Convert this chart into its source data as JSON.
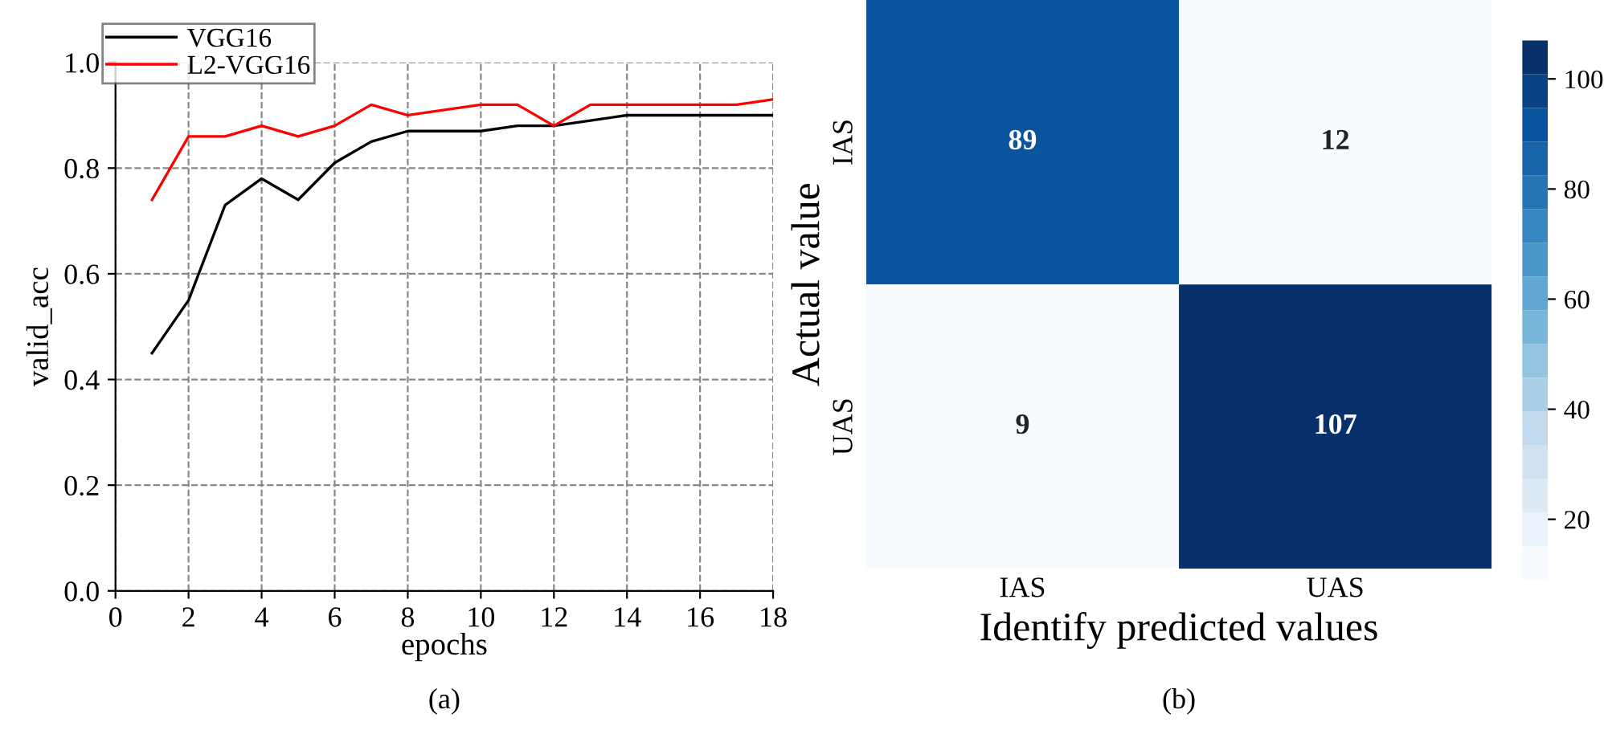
{
  "chart_data": [
    {
      "type": "line",
      "xlabel": "epochs",
      "ylabel": "valid_acc",
      "annotations": [
        "(a)"
      ],
      "x": [
        1,
        2,
        3,
        4,
        5,
        6,
        7,
        8,
        9,
        10,
        11,
        12,
        13,
        14,
        15,
        16,
        17,
        18
      ],
      "series": [
        {
          "name": "VGG16",
          "color": "#000000",
          "values": [
            0.45,
            0.55,
            0.73,
            0.78,
            0.74,
            0.81,
            0.85,
            0.87,
            0.87,
            0.87,
            0.88,
            0.88,
            0.89,
            0.9,
            0.9,
            0.9,
            0.9,
            0.9
          ]
        },
        {
          "name": "L2-VGG16",
          "color": "#ff0000",
          "values": [
            0.74,
            0.86,
            0.86,
            0.88,
            0.86,
            0.88,
            0.92,
            0.9,
            0.91,
            0.92,
            0.92,
            0.88,
            0.92,
            0.92,
            0.92,
            0.92,
            0.92,
            0.93
          ]
        }
      ],
      "xlim": [
        0,
        18
      ],
      "xticks": [
        0,
        2,
        4,
        6,
        8,
        10,
        12,
        14,
        16,
        18
      ],
      "ylim": [
        0,
        1.0
      ],
      "yticks": [
        {
          "value": 0,
          "label": "0.0"
        },
        {
          "value": 0.2,
          "label": "0.2"
        },
        {
          "value": 0.4,
          "label": "0.4"
        },
        {
          "value": 0.6,
          "label": "0.6"
        },
        {
          "value": 0.8,
          "label": "0.8"
        },
        {
          "value": 1.0,
          "label": "1.0"
        }
      ],
      "grid": true,
      "legend": "top left",
      "line_style": "solid",
      "marker": "none"
    },
    {
      "type": "heatmap",
      "xlabel": "Identify predicted values",
      "ylabel": "Actual value",
      "annotations": [
        "(b)"
      ],
      "categories": [
        "IAS",
        "UAS"
      ],
      "y_categories": [
        "IAS",
        "UAS"
      ],
      "cells": [
        [
          89,
          12
        ],
        [
          9,
          107
        ]
      ],
      "data_labels": true,
      "clim": [
        9,
        107
      ],
      "cticks": [
        20,
        40,
        60,
        80,
        100
      ]
    }
  ]
}
